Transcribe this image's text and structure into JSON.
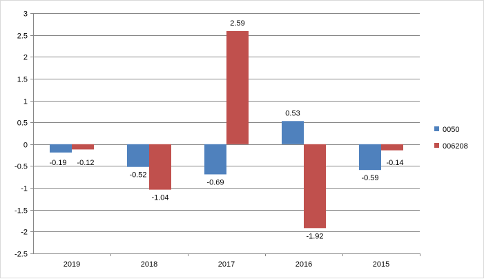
{
  "chart_data": {
    "type": "bar",
    "categories": [
      "2019",
      "2018",
      "2017",
      "2016",
      "2015"
    ],
    "series": [
      {
        "name": "0050",
        "color": "#4f81bd",
        "values": [
          -0.19,
          -0.52,
          -0.69,
          0.53,
          -0.59
        ]
      },
      {
        "name": "006208",
        "color": "#c0504d",
        "values": [
          -0.12,
          -1.04,
          2.59,
          -1.92,
          -0.14
        ]
      }
    ],
    "ylim": [
      -2.5,
      3
    ],
    "yticks": [
      "3",
      "2.5",
      "2",
      "1.5",
      "1",
      "0.5",
      "0",
      "-0.5",
      "-1",
      "-1.5",
      "-2",
      "-2.5"
    ],
    "ytick_values": [
      3,
      2.5,
      2,
      1.5,
      1,
      0.5,
      0,
      -0.5,
      -1,
      -1.5,
      -2,
      -2.5
    ],
    "grid": true,
    "legend": "right",
    "data_labels": true
  }
}
